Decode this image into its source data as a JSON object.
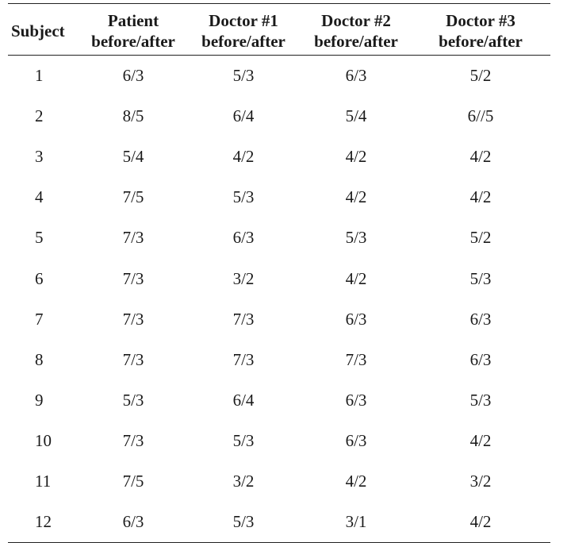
{
  "table": {
    "headers": [
      {
        "line1": "Subject",
        "line2": ""
      },
      {
        "line1": "Patient",
        "line2": "before/after"
      },
      {
        "line1": "Doctor #1",
        "line2": "before/after"
      },
      {
        "line1": "Doctor #2",
        "line2": "before/after"
      },
      {
        "line1": "Doctor #3",
        "line2": "before/after"
      }
    ],
    "rows": [
      [
        "1",
        "6/3",
        "5/3",
        "6/3",
        "5/2"
      ],
      [
        "2",
        "8/5",
        "6/4",
        "5/4",
        "6//5"
      ],
      [
        "3",
        "5/4",
        "4/2",
        "4/2",
        "4/2"
      ],
      [
        "4",
        "7/5",
        "5/3",
        "4/2",
        "4/2"
      ],
      [
        "5",
        "7/3",
        "6/3",
        "5/3",
        "5/2"
      ],
      [
        "6",
        "7/3",
        "3/2",
        "4/2",
        "5/3"
      ],
      [
        "7",
        "7/3",
        "7/3",
        "6/3",
        "6/3"
      ],
      [
        "8",
        "7/3",
        "7/3",
        "7/3",
        "6/3"
      ],
      [
        "9",
        "5/3",
        "6/4",
        "6/3",
        "5/3"
      ],
      [
        "10",
        "7/3",
        "5/3",
        "6/3",
        "4/2"
      ],
      [
        "11",
        "7/5",
        "3/2",
        "4/2",
        "3/2"
      ],
      [
        "12",
        "6/3",
        "5/3",
        "3/1",
        "4/2"
      ]
    ]
  }
}
